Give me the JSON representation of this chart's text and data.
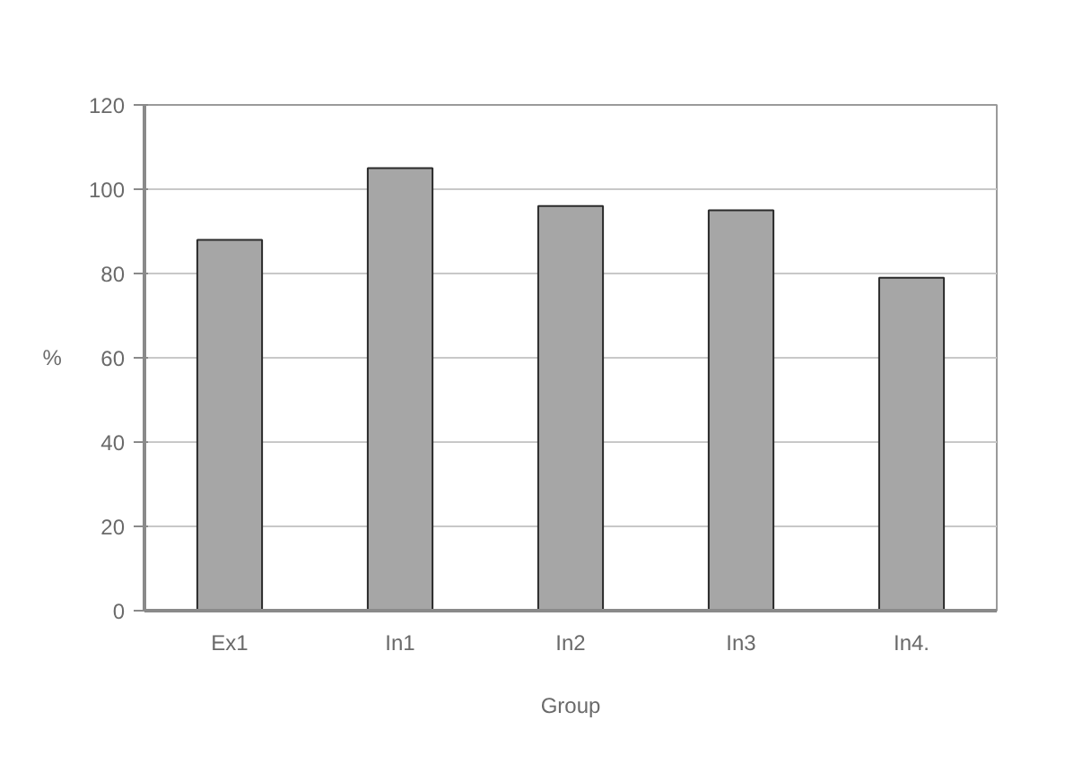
{
  "chart_data": {
    "type": "bar",
    "xlabel": "Group",
    "ylabel": "%",
    "categories": [
      "Ex1",
      "In1",
      "In2",
      "In3",
      "In4."
    ],
    "values": [
      88,
      105,
      96,
      95,
      79
    ],
    "color": "#a6a6a6",
    "ylim": [
      0,
      120
    ],
    "yticks": [
      0,
      20,
      40,
      60,
      80,
      100,
      120
    ],
    "grid": "y"
  }
}
